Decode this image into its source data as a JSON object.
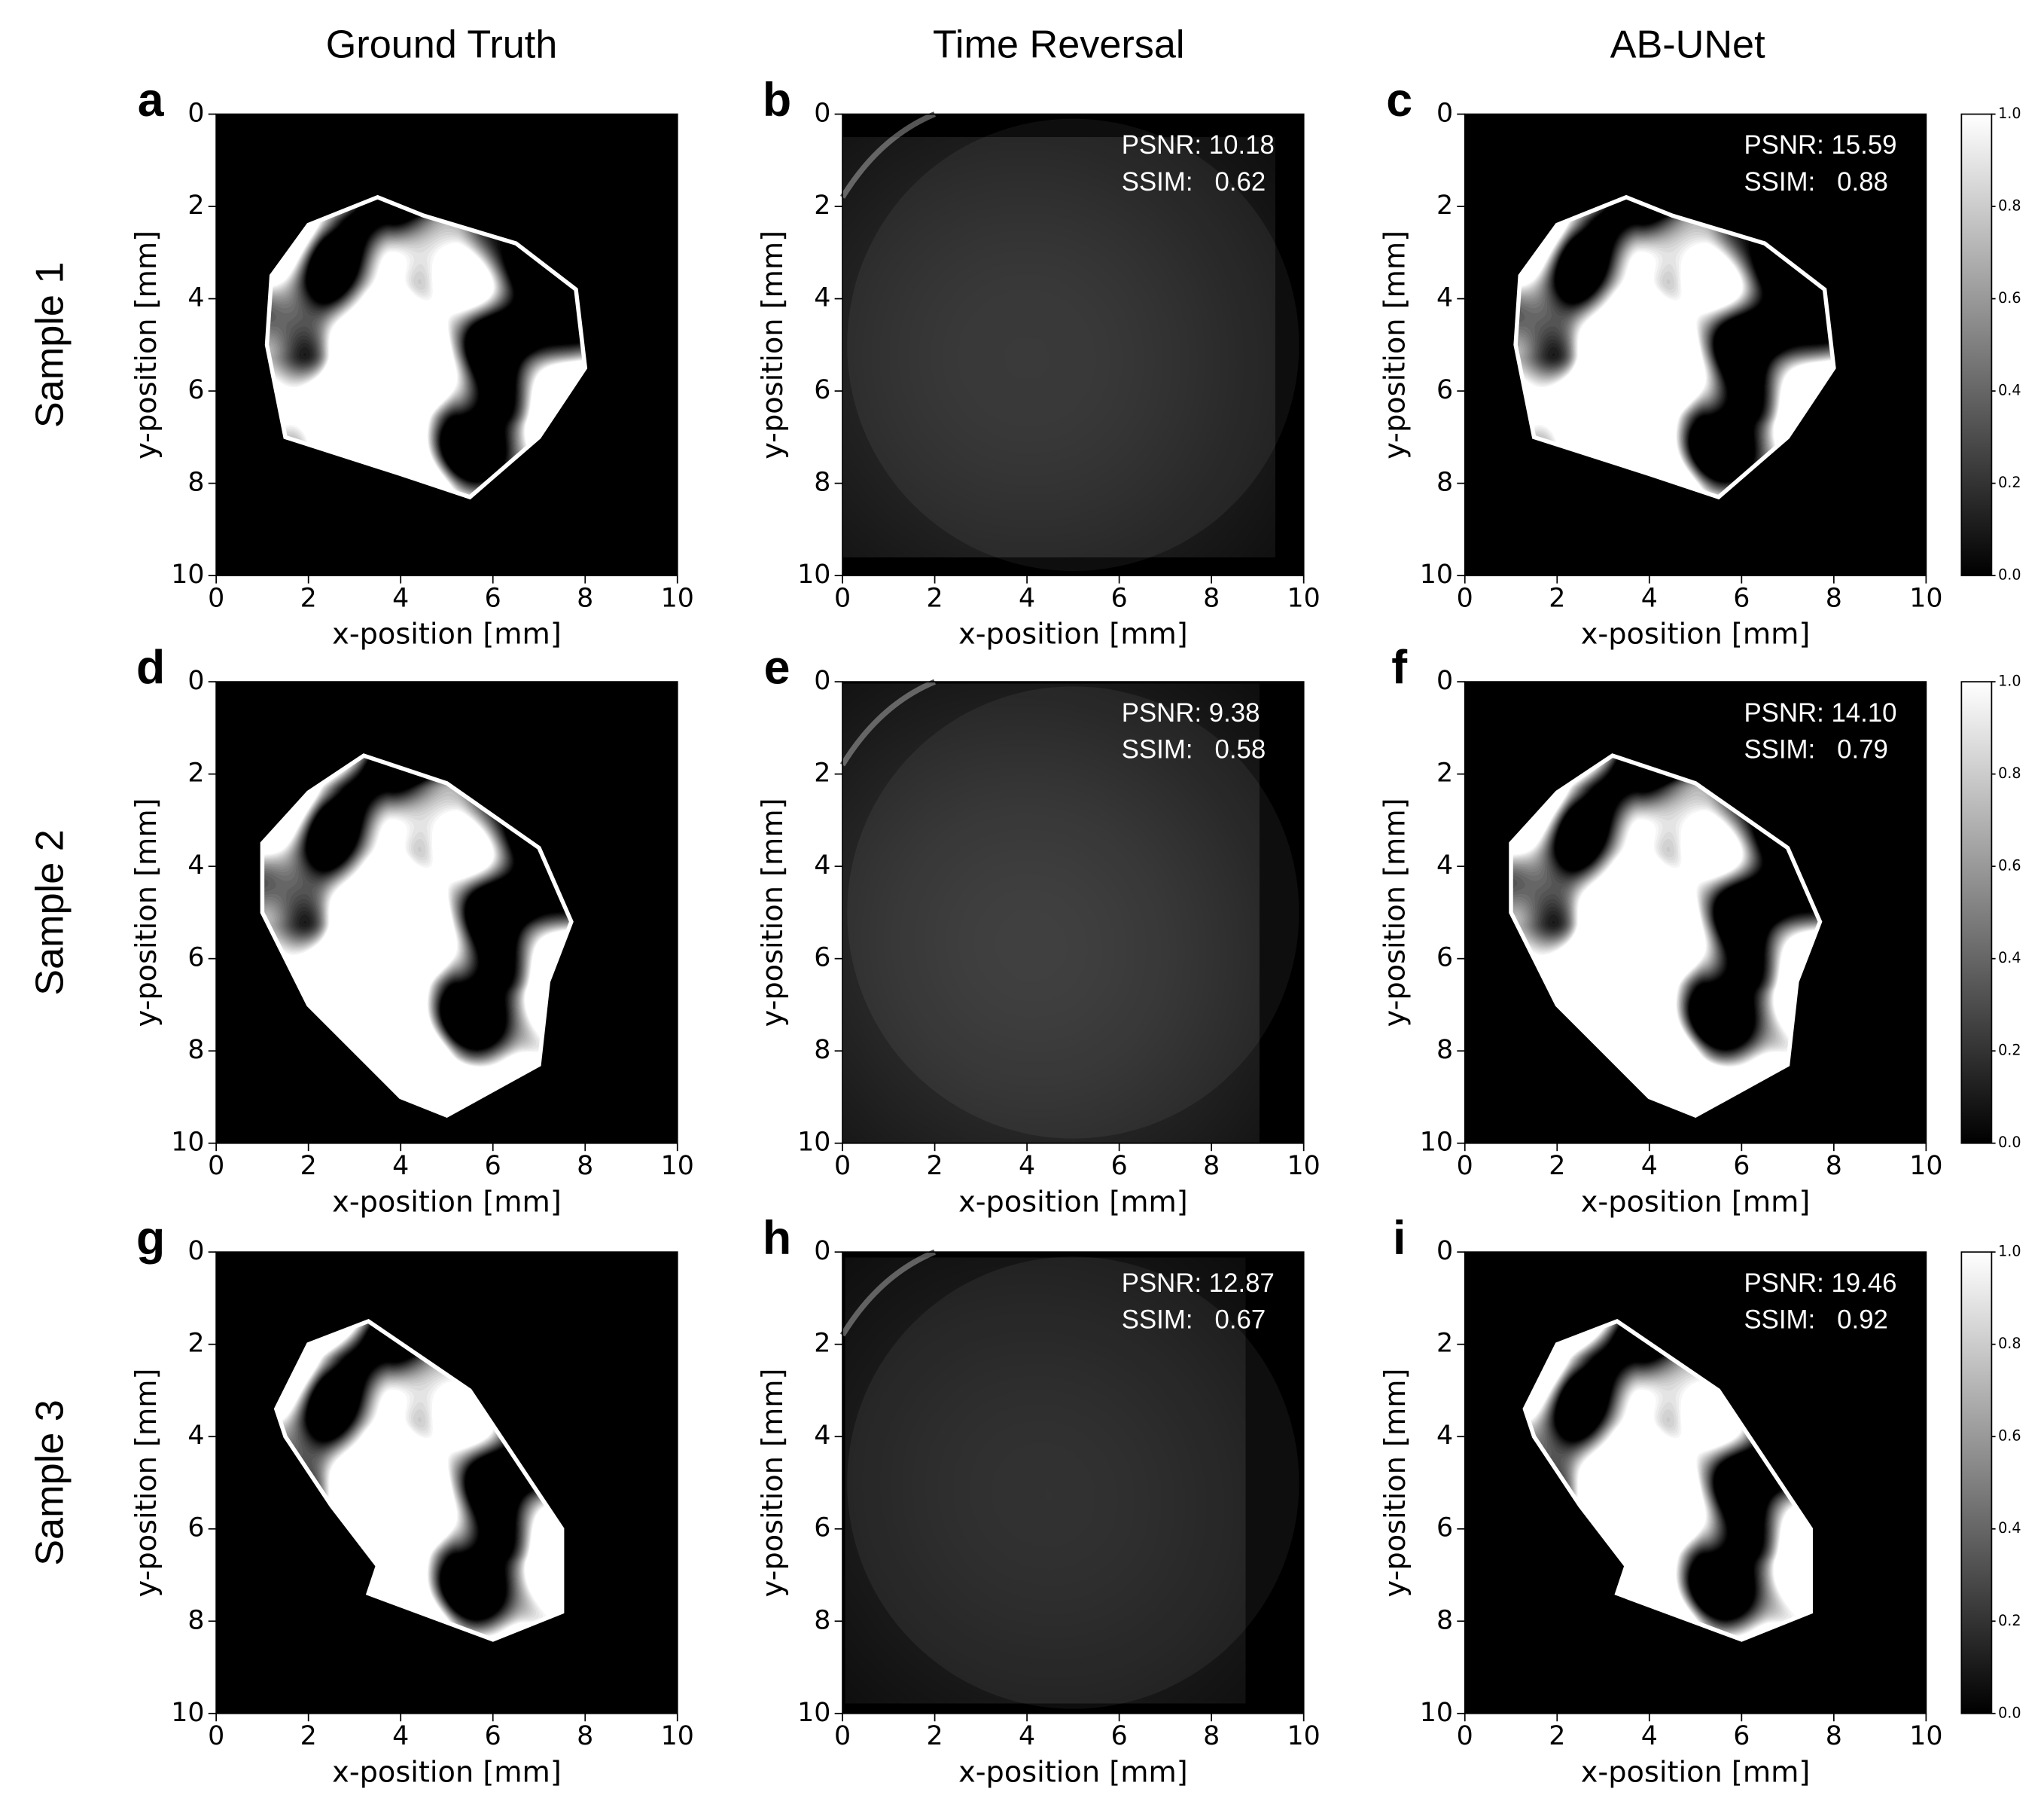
{
  "column_titles": [
    "Ground Truth",
    "Time Reversal",
    "AB-UNet"
  ],
  "rows": [
    {
      "label": "Sample 1",
      "panels": [
        {
          "letter": "a",
          "xlabel": "x-position [mm]",
          "ylabel": "y-position [mm]",
          "xlim": [
            0,
            10
          ],
          "ylim": [
            10,
            0
          ],
          "xticks": [
            0,
            2,
            4,
            6,
            8,
            10
          ],
          "yticks": [
            0,
            2,
            4,
            6,
            8,
            10
          ]
        },
        {
          "letter": "b",
          "xlabel": "x-position [mm]",
          "ylabel": "y-position [mm]",
          "xlim": [
            0,
            10
          ],
          "ylim": [
            10,
            0
          ],
          "xticks": [
            0,
            2,
            4,
            6,
            8,
            10
          ],
          "yticks": [
            0,
            2,
            4,
            6,
            8,
            10
          ],
          "metrics": [
            "PSNR: 10.18",
            "SSIM:   0.62"
          ]
        },
        {
          "letter": "c",
          "xlabel": "x-position [mm]",
          "ylabel": "y-position [mm]",
          "xlim": [
            0,
            10
          ],
          "ylim": [
            10,
            0
          ],
          "xticks": [
            0,
            2,
            4,
            6,
            8,
            10
          ],
          "yticks": [
            0,
            2,
            4,
            6,
            8,
            10
          ],
          "metrics": [
            "PSNR: 15.59",
            "SSIM:   0.88"
          ]
        }
      ],
      "colorbar": {
        "clim": [
          0,
          1
        ],
        "ticks": [
          {
            "value": 0,
            "label": "0.0"
          },
          {
            "value": 0.2,
            "label": "0.2"
          },
          {
            "value": 0.4,
            "label": "0.4"
          },
          {
            "value": 0.6,
            "label": "0.6"
          },
          {
            "value": 0.8,
            "label": "0.8"
          },
          {
            "value": 1,
            "label": "1.0"
          }
        ]
      }
    },
    {
      "label": "Sample 2",
      "panels": [
        {
          "letter": "d",
          "xlabel": "x-position [mm]",
          "ylabel": "y-position [mm]",
          "xlim": [
            0,
            10
          ],
          "ylim": [
            10,
            0
          ],
          "xticks": [
            0,
            2,
            4,
            6,
            8,
            10
          ],
          "yticks": [
            0,
            2,
            4,
            6,
            8,
            10
          ]
        },
        {
          "letter": "e",
          "xlabel": "x-position [mm]",
          "ylabel": "y-position [mm]",
          "xlim": [
            0,
            10
          ],
          "ylim": [
            10,
            0
          ],
          "xticks": [
            0,
            2,
            4,
            6,
            8,
            10
          ],
          "yticks": [
            0,
            2,
            4,
            6,
            8,
            10
          ],
          "metrics": [
            "PSNR: 9.38",
            "SSIM:   0.58"
          ]
        },
        {
          "letter": "f",
          "xlabel": "x-position [mm]",
          "ylabel": "y-position [mm]",
          "xlim": [
            0,
            10
          ],
          "ylim": [
            10,
            0
          ],
          "xticks": [
            0,
            2,
            4,
            6,
            8,
            10
          ],
          "yticks": [
            0,
            2,
            4,
            6,
            8,
            10
          ],
          "metrics": [
            "PSNR: 14.10",
            "SSIM:   0.79"
          ]
        }
      ],
      "colorbar": {
        "clim": [
          0,
          1
        ],
        "ticks": [
          {
            "value": 0,
            "label": "0.0"
          },
          {
            "value": 0.2,
            "label": "0.2"
          },
          {
            "value": 0.4,
            "label": "0.4"
          },
          {
            "value": 0.6,
            "label": "0.6"
          },
          {
            "value": 0.8,
            "label": "0.8"
          },
          {
            "value": 1,
            "label": "1.0"
          }
        ]
      }
    },
    {
      "label": "Sample 3",
      "panels": [
        {
          "letter": "g",
          "xlabel": "x-position [mm]",
          "ylabel": "y-position [mm]",
          "xlim": [
            0,
            10
          ],
          "ylim": [
            10,
            0
          ],
          "xticks": [
            0,
            2,
            4,
            6,
            8,
            10
          ],
          "yticks": [
            0,
            2,
            4,
            6,
            8,
            10
          ]
        },
        {
          "letter": "h",
          "xlabel": "x-position [mm]",
          "ylabel": "y-position [mm]",
          "xlim": [
            0,
            10
          ],
          "ylim": [
            10,
            0
          ],
          "xticks": [
            0,
            2,
            4,
            6,
            8,
            10
          ],
          "yticks": [
            0,
            2,
            4,
            6,
            8,
            10
          ],
          "metrics": [
            "PSNR: 12.87",
            "SSIM:   0.67"
          ]
        },
        {
          "letter": "i",
          "xlabel": "x-position [mm]",
          "ylabel": "y-position [mm]",
          "xlim": [
            0,
            10
          ],
          "ylim": [
            10,
            0
          ],
          "xticks": [
            0,
            2,
            4,
            6,
            8,
            10
          ],
          "yticks": [
            0,
            2,
            4,
            6,
            8,
            10
          ],
          "metrics": [
            "PSNR: 19.46",
            "SSIM:   0.92"
          ]
        }
      ],
      "colorbar": {
        "clim": [
          0,
          1
        ],
        "ticks": [
          {
            "value": 0,
            "label": "0.0"
          },
          {
            "value": 0.2,
            "label": "0.2"
          },
          {
            "value": 0.4,
            "label": "0.4"
          },
          {
            "value": 0.6,
            "label": "0.6"
          },
          {
            "value": 0.8,
            "label": "0.8"
          },
          {
            "value": 1,
            "label": "1.0"
          }
        ]
      }
    }
  ]
}
